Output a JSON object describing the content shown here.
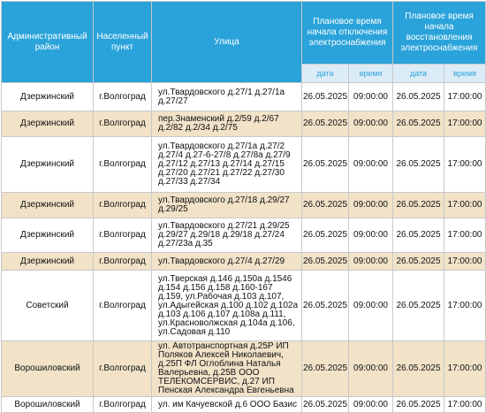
{
  "headers": {
    "district": "Административный район",
    "settlement": "Населенный пункт",
    "street": "Улица",
    "off": "Плановое время начала отключения электроснабжения",
    "restore": "Плановое время начала восстановления электроснабжения",
    "date": "дата",
    "time": "время"
  },
  "rows": [
    {
      "district": "Дзержинский",
      "settlement": "г.Волгоград",
      "street": "ул.Твардовского д.27/1 д.27/1а д.27/27",
      "off_date": "26.05.2025",
      "off_time": "09:00:00",
      "on_date": "26.05.2025",
      "on_time": "17:00:00"
    },
    {
      "district": "Дзержинский",
      "settlement": "г.Волгоград",
      "street": "пер.Знаменский д.2/59 д.2/67 д.2/82 д.2/34 д.2/75",
      "off_date": "26.05.2025",
      "off_time": "09:00:00",
      "on_date": "26.05.2025",
      "on_time": "17:00:00"
    },
    {
      "district": "Дзержинский",
      "settlement": "г.Волгоград",
      "street": "ул.Твардовского д.27/1а д.27/2 д.27/4 д.27-6-27/8 д.27/8а д.27/9 д.27/12 д.27/13 д.27/14 д.27/15 д.27/20 д.27/21 д.27/22 д.27/30 д.27/33 д.27/34",
      "off_date": "26.05.2025",
      "off_time": "09:00:00",
      "on_date": "26.05.2025",
      "on_time": "17:00:00"
    },
    {
      "district": "Дзержинский",
      "settlement": "г.Волгоград",
      "street": "ул.Твардовского д.27/18 д.29/27 д.29/25",
      "off_date": "26.05.2025",
      "off_time": "09:00:00",
      "on_date": "26.05.2025",
      "on_time": "17:00:00"
    },
    {
      "district": "Дзержинский",
      "settlement": "г.Волгоград",
      "street": "ул.Твардовского д.27/21 д.29/25 д.29/27 д.29/18 д.29/18 д.27/24 д.27/23а д.35",
      "off_date": "26.05.2025",
      "off_time": "09:00:00",
      "on_date": "26.05.2025",
      "on_time": "17:00:00"
    },
    {
      "district": "Дзержинский",
      "settlement": "г.Волгоград",
      "street": "ул.Твардовского д.27/4 д.27/29",
      "off_date": "26.05.2025",
      "off_time": "09:00:00",
      "on_date": "26.05.2025",
      "on_time": "17:00:00"
    },
    {
      "district": "Советский",
      "settlement": "г.Волгоград",
      "street": "ул.Тверская д.146 д.150а д.1546 д.154 д.156 д.158 д.160-167 д.159, ул.Рабочая д.103 д.107, ул.Адыгейская д.100 д.102 д.102а д.103 д.106 д.107 д.108а д.111, ул.Красноволжская д.104а д.106, ул.Садовая д.110",
      "off_date": "26.05.2025",
      "off_time": "09:00:00",
      "on_date": "26.05.2025",
      "on_time": "17:00:00"
    },
    {
      "district": "Ворошиловский",
      "settlement": "г.Волгоград",
      "street": "ул. Автотранспортная д.25Р ИП Поляков Алексей Николаевич, д.25П ФЛ Оглоблина Наталья Валерьевна, д.25В ООО ТЕЛЕКОМСЕРВИС, д.27 ИП Пенская Александра Евгеньевна",
      "off_date": "26.05.2025",
      "off_time": "09:00:00",
      "on_date": "26.05.2025",
      "on_time": "17:00:00"
    },
    {
      "district": "Ворошиловский",
      "settlement": "г.Волгоград",
      "street": "ул. им Качуевской д.6 ООО Базис",
      "off_date": "26.05.2025",
      "off_time": "09:00:00",
      "on_date": "26.05.2025",
      "on_time": "17:00:00"
    }
  ]
}
